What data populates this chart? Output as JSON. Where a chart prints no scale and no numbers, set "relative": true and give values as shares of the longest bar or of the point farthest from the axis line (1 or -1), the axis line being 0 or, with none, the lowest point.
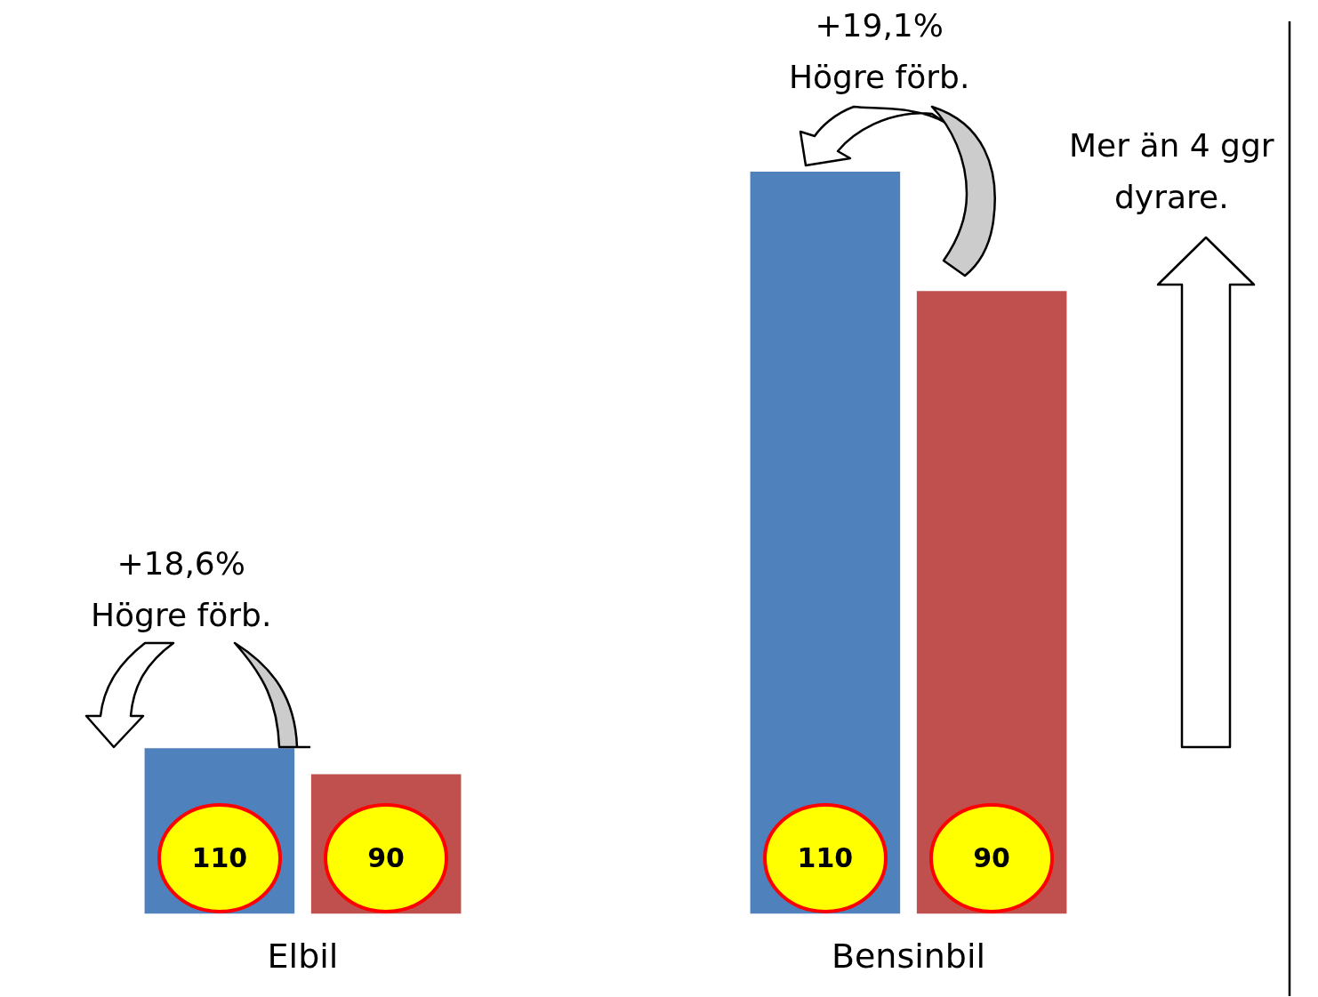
{
  "chart_data": {
    "type": "bar",
    "relative": true,
    "categories": [
      "Elbil",
      "Bensinbil"
    ],
    "series": [
      {
        "color": "#4f81bd",
        "values": [
          0.223,
          1
        ]
      },
      {
        "color": "#c0504d",
        "values": [
          0.188,
          0.839
        ]
      }
    ],
    "legend": false,
    "annotations": [
      "+18,6%\nHögre förb.",
      "+19,1%\nHögre förb.",
      "Mer än 4 ggr\ndyrare.",
      "110",
      "90",
      "110",
      "90"
    ]
  }
}
